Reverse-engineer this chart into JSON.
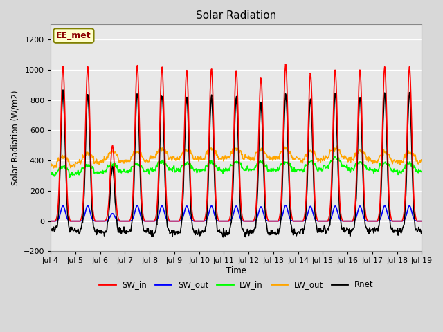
{
  "title": "Solar Radiation",
  "ylabel": "Solar Radiation (W/m2)",
  "xlabel": "Time",
  "ylim": [
    -200,
    1300
  ],
  "yticks": [
    -200,
    0,
    200,
    400,
    600,
    800,
    1000,
    1200
  ],
  "xlim": [
    0,
    360
  ],
  "annotation_text": "EE_met",
  "annotation_color": "#8B0000",
  "annotation_bg": "#FFFFCC",
  "bg_color": "#D8D8D8",
  "plot_bg": "#E8E8E8",
  "grid_color": "#FFFFFF",
  "lines": {
    "SW_in": {
      "color": "red",
      "lw": 1.2
    },
    "SW_out": {
      "color": "blue",
      "lw": 1.2
    },
    "LW_in": {
      "color": "lime",
      "lw": 1.2
    },
    "LW_out": {
      "color": "orange",
      "lw": 1.2
    },
    "Rnet": {
      "color": "black",
      "lw": 1.2
    }
  },
  "xtick_labels": [
    "Jul 4",
    "Jul 5",
    "Jul 6",
    "Jul 7",
    "Jul 8",
    "Jul 9",
    "Jul 10",
    "Jul 11",
    "Jul 12",
    "Jul 13",
    "Jul 14",
    "Jul 15",
    "Jul 16",
    "Jul 17",
    "Jul 18",
    "Jul 19"
  ],
  "xtick_positions": [
    0,
    24,
    48,
    72,
    96,
    120,
    144,
    168,
    192,
    216,
    240,
    264,
    288,
    312,
    336,
    360
  ]
}
